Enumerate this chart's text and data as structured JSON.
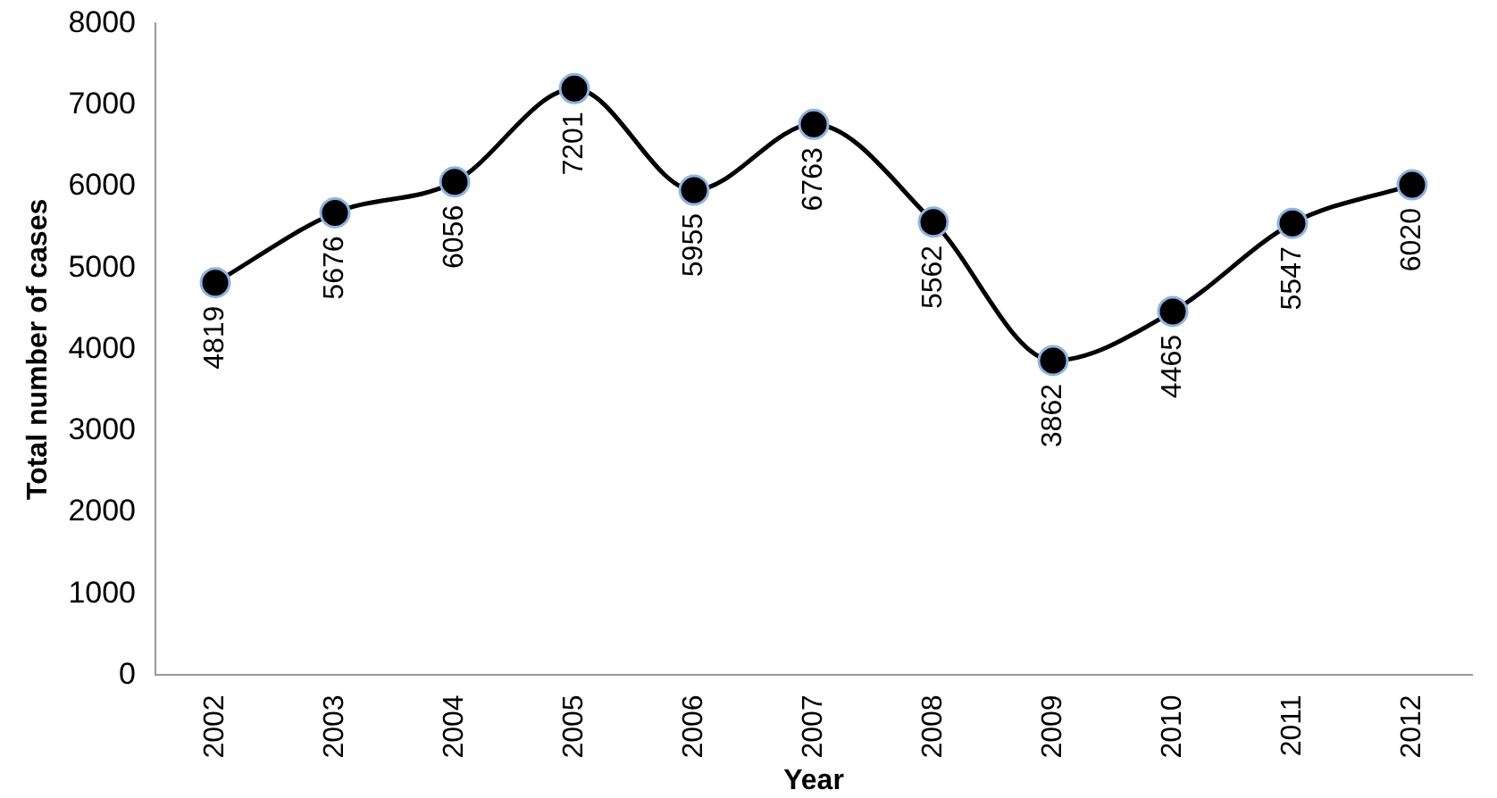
{
  "chart_data": {
    "type": "line",
    "xlabel": "Year",
    "ylabel": "Total number of cases",
    "categories": [
      "2002",
      "2003",
      "2004",
      "2005",
      "2006",
      "2007",
      "2008",
      "2009",
      "2010",
      "2011",
      "2012"
    ],
    "series": [
      {
        "color": "#000000",
        "values": [
          4819,
          5676,
          6056,
          7201,
          5955,
          6763,
          5562,
          3862,
          4465,
          5547,
          6020
        ]
      }
    ],
    "ylim": [
      0,
      8000
    ],
    "yticks": [
      0,
      1000,
      2000,
      3000,
      4000,
      5000,
      6000,
      7000,
      8000
    ],
    "grid": false,
    "legend": false,
    "marker": "circle",
    "line_style": "solid",
    "data_labels": true
  }
}
